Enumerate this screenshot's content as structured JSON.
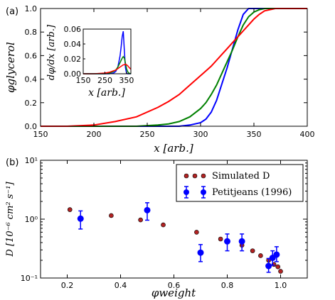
{
  "chart_data": [
    {
      "type": "line",
      "panel_label": "(a)",
      "xlabel": "x [arb.]",
      "ylabel": "φglycerol",
      "xlim": [
        150,
        400
      ],
      "ylim": [
        0.0,
        1.0
      ],
      "xticks": [
        "150",
        "200",
        "250",
        "300",
        "350",
        "400"
      ],
      "yticks": [
        "0.0",
        "0.2",
        "0.4",
        "0.6",
        "0.8",
        "1.0"
      ],
      "x": [
        150,
        175,
        200,
        220,
        240,
        260,
        270,
        280,
        290,
        300,
        305,
        310,
        315,
        320,
        325,
        330,
        335,
        340,
        345,
        350,
        355,
        360,
        370,
        380,
        400
      ],
      "series": [
        {
          "color": "#0000ff",
          "values": [
            0.0,
            0.0,
            0.0,
            0.0,
            0.0,
            0.0,
            0.0,
            0.0,
            0.01,
            0.03,
            0.06,
            0.12,
            0.22,
            0.36,
            0.5,
            0.66,
            0.82,
            0.95,
            1.0,
            1.0,
            1.0,
            1.0,
            1.0,
            1.0,
            1.0
          ]
        },
        {
          "color": "#008000",
          "values": [
            0.0,
            0.0,
            0.0,
            0.0,
            0.0,
            0.01,
            0.02,
            0.04,
            0.08,
            0.15,
            0.2,
            0.27,
            0.35,
            0.45,
            0.55,
            0.65,
            0.76,
            0.86,
            0.93,
            0.97,
            0.99,
            1.0,
            1.0,
            1.0,
            1.0
          ]
        },
        {
          "color": "#ff0000",
          "values": [
            0.0,
            0.0,
            0.01,
            0.04,
            0.08,
            0.16,
            0.21,
            0.27,
            0.35,
            0.43,
            0.47,
            0.51,
            0.56,
            0.61,
            0.66,
            0.71,
            0.76,
            0.81,
            0.86,
            0.91,
            0.95,
            0.98,
            1.0,
            1.0,
            1.0
          ]
        }
      ]
    },
    {
      "type": "line",
      "inset": true,
      "xlabel": "x [arb.]",
      "ylabel": "dφ/dx [arb.]",
      "xlim": [
        150,
        370
      ],
      "ylim": [
        0.0,
        0.06
      ],
      "xticks": [
        "150",
        "250",
        "350"
      ],
      "yticks": [
        "0.00",
        "0.02",
        "0.04",
        "0.06"
      ],
      "x": [
        150,
        200,
        250,
        270,
        290,
        300,
        310,
        320,
        325,
        330,
        335,
        340,
        345,
        350,
        355,
        360,
        370
      ],
      "series": [
        {
          "color": "#0000ff",
          "values": [
            0.0,
            0.0,
            0.0,
            0.0,
            0.001,
            0.003,
            0.009,
            0.024,
            0.036,
            0.05,
            0.057,
            0.03,
            0.008,
            0.001,
            0.0,
            0.0,
            0.0
          ]
        },
        {
          "color": "#008000",
          "values": [
            0.0,
            0.0,
            0.0,
            0.001,
            0.003,
            0.005,
            0.009,
            0.015,
            0.018,
            0.021,
            0.023,
            0.021,
            0.014,
            0.007,
            0.003,
            0.001,
            0.0
          ]
        },
        {
          "color": "#ff0000",
          "values": [
            0.0,
            0.0,
            0.001,
            0.002,
            0.004,
            0.005,
            0.007,
            0.009,
            0.01,
            0.011,
            0.012,
            0.012,
            0.013,
            0.012,
            0.011,
            0.009,
            0.006
          ]
        }
      ]
    },
    {
      "type": "scatter",
      "panel_label": "(b)",
      "xlabel": "φweight",
      "ylabel": "D [10⁻⁶ cm² s⁻¹]",
      "xlim": [
        0.1,
        1.1
      ],
      "ylim": [
        0.1,
        10
      ],
      "yscale": "log",
      "xticks": [
        "0.2",
        "0.4",
        "0.6",
        "0.8",
        "1.0"
      ],
      "yticks": [
        "10⁻¹",
        "10⁰",
        "10¹"
      ],
      "legend_position": "top-right",
      "series": [
        {
          "name": "Simulated D",
          "marker": "circle",
          "color": "#b22222",
          "x": [
            0.21,
            0.365,
            0.475,
            0.56,
            0.685,
            0.775,
            0.855,
            0.895,
            0.925,
            0.955,
            0.975,
            0.99,
            1.0
          ],
          "y": [
            1.45,
            1.15,
            0.97,
            0.8,
            0.6,
            0.46,
            0.36,
            0.29,
            0.24,
            0.2,
            0.17,
            0.155,
            0.13
          ]
        },
        {
          "name": "Petitjeans (1996)",
          "marker": "circle-errorbar",
          "color": "#0000ff",
          "x": [
            0.25,
            0.5,
            0.7,
            0.8,
            0.855,
            0.955,
            0.97,
            0.985
          ],
          "y": [
            1.02,
            1.42,
            0.27,
            0.42,
            0.42,
            0.16,
            0.22,
            0.25
          ],
          "yerr_low": [
            0.68,
            0.96,
            0.19,
            0.29,
            0.29,
            0.125,
            0.165,
            0.19
          ],
          "yerr_high": [
            1.38,
            1.9,
            0.37,
            0.56,
            0.56,
            0.215,
            0.29,
            0.34
          ]
        }
      ]
    }
  ]
}
